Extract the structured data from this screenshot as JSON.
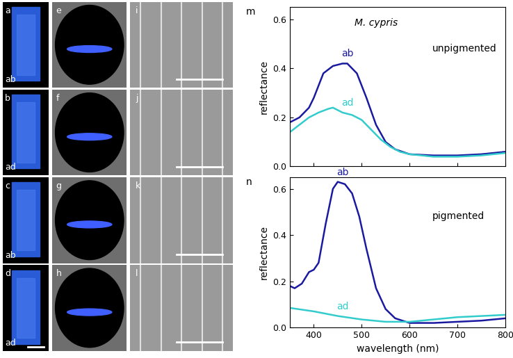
{
  "image_panels": [
    {
      "label": "a",
      "tag": "ab",
      "kind": "scale"
    },
    {
      "label": "b",
      "tag": "ad",
      "kind": "scale"
    },
    {
      "label": "c",
      "tag": "ab",
      "kind": "scale"
    },
    {
      "label": "d",
      "tag": "ad",
      "kind": "scale"
    },
    {
      "label": "e",
      "kind": "scatter"
    },
    {
      "label": "f",
      "kind": "scatter"
    },
    {
      "label": "g",
      "kind": "scatter"
    },
    {
      "label": "h",
      "kind": "scatter"
    },
    {
      "label": "i",
      "kind": "sem"
    },
    {
      "label": "j",
      "kind": "sem"
    },
    {
      "label": "k",
      "kind": "sem"
    },
    {
      "label": "l",
      "kind": "sem"
    }
  ],
  "chart_data": [
    {
      "type": "line",
      "panel_label": "m",
      "annotations": [
        {
          "text": "M. cypris",
          "italic": true
        },
        {
          "text": "unpigmented"
        }
      ],
      "y_label": "reflectance",
      "tick_labels": "y",
      "xlim": [
        350,
        800
      ],
      "xticks": [
        400,
        500,
        600,
        700,
        800
      ],
      "ylim": [
        0,
        0.65
      ],
      "yticks": [
        {
          "value": 0,
          "label": "0.0"
        },
        0.2,
        0.4,
        0.6
      ],
      "series": [
        {
          "name": "ab",
          "color": "#1a1aa0",
          "x": [
            350,
            370,
            390,
            400,
            420,
            440,
            460,
            470,
            490,
            510,
            530,
            550,
            570,
            600,
            650,
            700,
            750,
            800
          ],
          "values": [
            0.18,
            0.2,
            0.24,
            0.28,
            0.38,
            0.41,
            0.42,
            0.42,
            0.38,
            0.28,
            0.17,
            0.1,
            0.07,
            0.05,
            0.045,
            0.045,
            0.05,
            0.06
          ]
        },
        {
          "name": "ad",
          "color": "#33cccc",
          "x": [
            350,
            370,
            390,
            410,
            430,
            440,
            460,
            480,
            500,
            520,
            540,
            560,
            580,
            600,
            650,
            700,
            750,
            800
          ],
          "values": [
            0.14,
            0.17,
            0.2,
            0.22,
            0.235,
            0.24,
            0.22,
            0.21,
            0.19,
            0.15,
            0.11,
            0.08,
            0.06,
            0.05,
            0.04,
            0.04,
            0.045,
            0.055
          ]
        }
      ]
    },
    {
      "type": "line",
      "panel_label": "n",
      "annotations": [
        {
          "text": "pigmented"
        }
      ],
      "x_label": "wavelength (nm)",
      "y_label": "reflectance",
      "xlim": [
        350,
        800
      ],
      "xticks": [
        400,
        500,
        600,
        700,
        800
      ],
      "ylim": [
        0,
        0.65
      ],
      "yticks": [
        {
          "value": 0,
          "label": "0.0"
        },
        0.2,
        0.4,
        0.6
      ],
      "series": [
        {
          "name": "ab",
          "color": "#1a1aa0",
          "x": [
            350,
            360,
            375,
            390,
            400,
            410,
            425,
            440,
            450,
            465,
            480,
            495,
            510,
            530,
            550,
            570,
            600,
            650,
            700,
            750,
            800
          ],
          "values": [
            0.18,
            0.17,
            0.19,
            0.24,
            0.25,
            0.28,
            0.45,
            0.6,
            0.63,
            0.62,
            0.58,
            0.48,
            0.34,
            0.17,
            0.08,
            0.04,
            0.02,
            0.02,
            0.025,
            0.03,
            0.04
          ]
        },
        {
          "name": "ad",
          "color": "#33cccc",
          "x": [
            350,
            400,
            450,
            500,
            550,
            600,
            650,
            700,
            750,
            800
          ],
          "values": [
            0.085,
            0.07,
            0.05,
            0.035,
            0.025,
            0.025,
            0.035,
            0.045,
            0.05,
            0.055
          ]
        }
      ]
    }
  ]
}
